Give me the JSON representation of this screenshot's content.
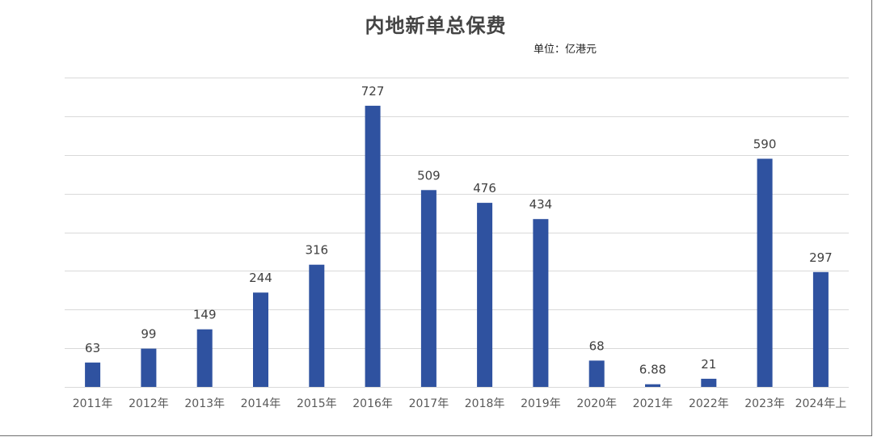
{
  "chart_data": {
    "type": "bar",
    "title": "内地新单总保费",
    "unit_note": "单位：亿港元",
    "categories": [
      "2011年",
      "2012年",
      "2013年",
      "2014年",
      "2015年",
      "2016年",
      "2017年",
      "2018年",
      "2019年",
      "2020年",
      "2021年",
      "2022年",
      "2023年",
      "2024年上"
    ],
    "values": [
      63,
      99,
      149,
      244,
      316,
      727,
      509,
      476,
      434,
      68,
      6.88,
      21,
      590,
      297
    ],
    "value_labels": [
      "63",
      "99",
      "149",
      "244",
      "316",
      "727",
      "509",
      "476",
      "434",
      "68",
      "6.88",
      "21",
      "590",
      "297"
    ],
    "ylim": [
      0,
      800
    ],
    "gridlines": 8,
    "grid": true,
    "legend": "none",
    "bar_color": "#2f52a0"
  }
}
